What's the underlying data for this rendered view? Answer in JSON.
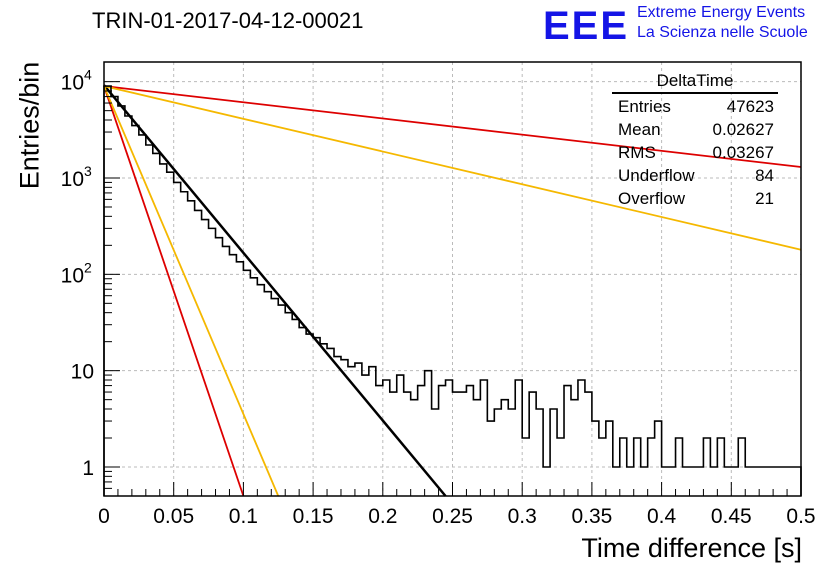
{
  "header": {
    "title": "TRIN-01-2017-04-12-00021",
    "logo_text": "EEE",
    "logo_line1": "Extreme Energy Events",
    "logo_line2": "La Scienza nelle Scuole"
  },
  "stats_box": {
    "name": "DeltaTime",
    "rows": [
      {
        "label": "Entries",
        "value": "47623"
      },
      {
        "label": "Mean",
        "value": "0.02627"
      },
      {
        "label": "RMS",
        "value": "0.03267"
      },
      {
        "label": "Underflow",
        "value": "84"
      },
      {
        "label": "Overflow",
        "value": "21"
      }
    ]
  },
  "chart_data": {
    "type": "line",
    "xlabel": "Time difference [s]",
    "ylabel": "Entries/bin",
    "xlim": [
      0,
      0.5
    ],
    "ylim": [
      0.5,
      16000
    ],
    "y_scale": "log",
    "grid": true,
    "x_ticks": [
      "0",
      "0.05",
      "0.1",
      "0.15",
      "0.2",
      "0.25",
      "0.3",
      "0.35",
      "0.4",
      "0.45",
      "0.5"
    ],
    "y_ticks": [
      {
        "value": 10000,
        "label": "10",
        "exp": "4"
      },
      {
        "value": 1000,
        "label": "10",
        "exp": "3"
      },
      {
        "value": 100,
        "label": "10",
        "exp": "2"
      },
      {
        "value": 10,
        "label": "10",
        "exp": ""
      },
      {
        "value": 1,
        "label": "1",
        "exp": ""
      }
    ],
    "histogram": {
      "bin_width": 0.005,
      "color": "#000000",
      "counts": [
        9000,
        7000,
        5600,
        4400,
        3500,
        2800,
        2200,
        1800,
        1400,
        1150,
        900,
        720,
        580,
        460,
        370,
        300,
        240,
        195,
        160,
        135,
        110,
        92,
        78,
        66,
        56,
        48,
        40,
        34,
        28,
        24,
        22,
        19,
        17,
        14,
        13,
        11,
        12,
        9,
        11,
        7,
        8,
        6,
        9,
        6,
        5,
        7,
        10,
        4,
        7,
        8,
        6,
        6,
        7,
        5,
        8,
        3,
        4,
        5,
        4,
        8,
        2,
        6,
        4,
        1,
        4,
        2,
        7,
        5,
        8,
        6,
        3,
        2,
        3,
        1,
        2,
        1,
        2,
        1,
        2,
        3,
        1,
        1,
        2,
        1,
        1,
        1,
        2,
        1,
        2,
        1,
        1,
        2,
        1,
        1,
        1,
        1,
        1,
        1,
        1,
        1
      ]
    },
    "series": [
      {
        "color": "#000000",
        "x": [
          0,
          0.245
        ],
        "y": [
          9200,
          0.5
        ]
      },
      {
        "color": "#dd0000",
        "x": [
          0,
          0.1
        ],
        "y": [
          9000,
          0.5
        ]
      },
      {
        "color": "#f5b800",
        "x": [
          0,
          0.125
        ],
        "y": [
          9000,
          0.5
        ]
      },
      {
        "color": "#dd0000",
        "x": [
          0,
          0.5
        ],
        "y": [
          9000,
          1300
        ]
      },
      {
        "color": "#f5b800",
        "x": [
          0,
          0.5
        ],
        "y": [
          9000,
          180
        ]
      }
    ]
  }
}
